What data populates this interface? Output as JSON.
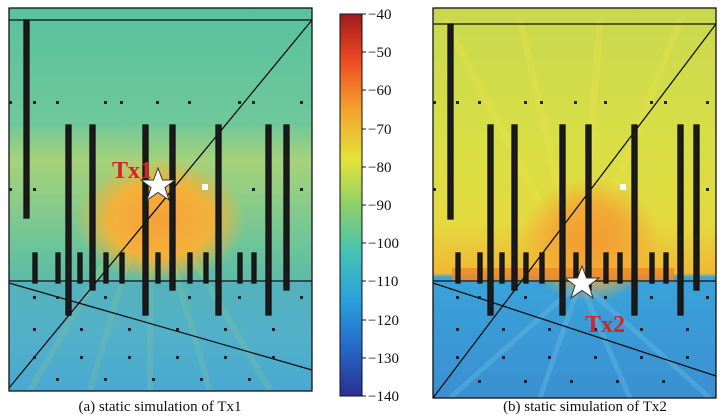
{
  "panel_a": {
    "caption": "(a) static simulation of Tx1",
    "tx_label": "Tx1"
  },
  "panel_b": {
    "caption": "(b) static simulation of Tx2",
    "tx_label": "Tx2"
  },
  "colorbar": {
    "ticks": [
      "−40",
      "−50",
      "−60",
      "−70",
      "−80",
      "−90",
      "−100",
      "−110",
      "−120",
      "−130",
      "−140"
    ],
    "range": [
      -140,
      -40
    ],
    "colormap": [
      "#2a2f8f",
      "#2566c7",
      "#2aa0dd",
      "#46c3b0",
      "#8ed06a",
      "#e4e33a",
      "#f4a22e",
      "#ee4a22",
      "#9e1a1a"
    ]
  },
  "colors": {
    "marker_star": "#ffffff",
    "label_red": "#d4232a"
  }
}
